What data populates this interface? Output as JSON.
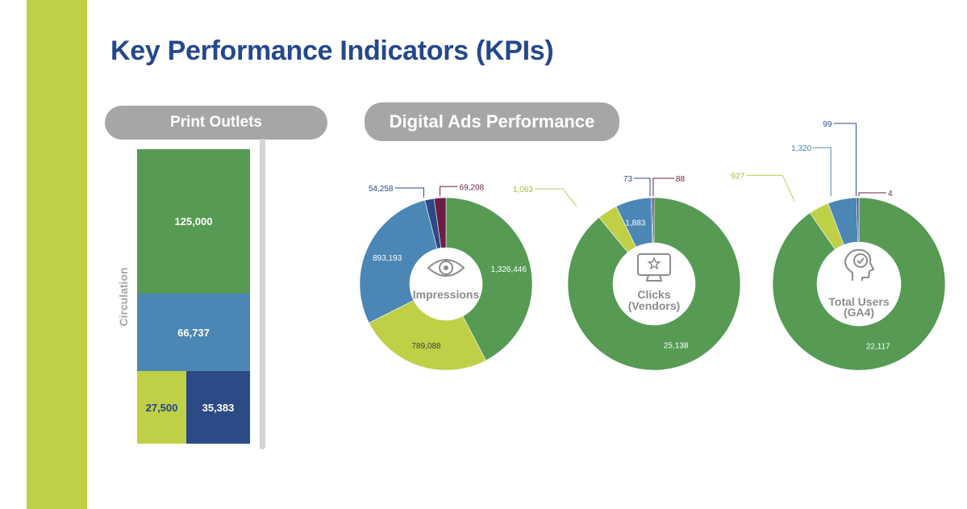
{
  "page": {
    "title": "Key Performance Indicators (KPIs)",
    "print_header": "Print Outlets",
    "digital_header": "Digital Ads Performance"
  },
  "colors": {
    "green": "#569a54",
    "blue": "#4b86b4",
    "lime": "#bfcf46",
    "navy": "#2b4a86",
    "maroon": "#6b1f45",
    "title": "#25488c",
    "gray": "#a6a6a6"
  },
  "chart_data": [
    {
      "type": "treemap",
      "title": "Print Outlets",
      "ylabel": "Circulation",
      "values": [
        125000,
        66737,
        27500,
        35383
      ],
      "labels": [
        "125,000",
        "66,737",
        "27,500",
        "35,383"
      ],
      "colors": [
        "#569a54",
        "#4b86b4",
        "#bfcf46",
        "#2b4a86"
      ]
    },
    {
      "type": "pie",
      "title": "Impressions",
      "center_label": [
        "Impressions"
      ],
      "values": [
        1326446,
        789088,
        893193,
        54258,
        69208
      ],
      "labels": [
        "1,326,446",
        "789,088",
        "893,193",
        "54,258",
        "69,208"
      ],
      "colors": [
        "#569a54",
        "#bfcf46",
        "#4b86b4",
        "#2b4a86",
        "#6b1f45"
      ]
    },
    {
      "type": "pie",
      "title": "Clicks (Vendors)",
      "center_label": [
        "Clicks",
        "(Vendors)"
      ],
      "values": [
        25138,
        1063,
        1883,
        73,
        88
      ],
      "labels": [
        "25,138",
        "1,063",
        "1,883",
        "73",
        "88"
      ],
      "colors": [
        "#569a54",
        "#bfcf46",
        "#4b86b4",
        "#2b4a86",
        "#6b1f45"
      ]
    },
    {
      "type": "pie",
      "title": "Total Users (GA4)",
      "center_label": [
        "Total Users",
        "(GA4)"
      ],
      "values": [
        22117,
        927,
        1320,
        99,
        4
      ],
      "labels": [
        "22,117",
        "927",
        "1,320",
        "99",
        "4"
      ],
      "colors": [
        "#569a54",
        "#bfcf46",
        "#4b86b4",
        "#2b4a86",
        "#6b1f45"
      ]
    }
  ]
}
